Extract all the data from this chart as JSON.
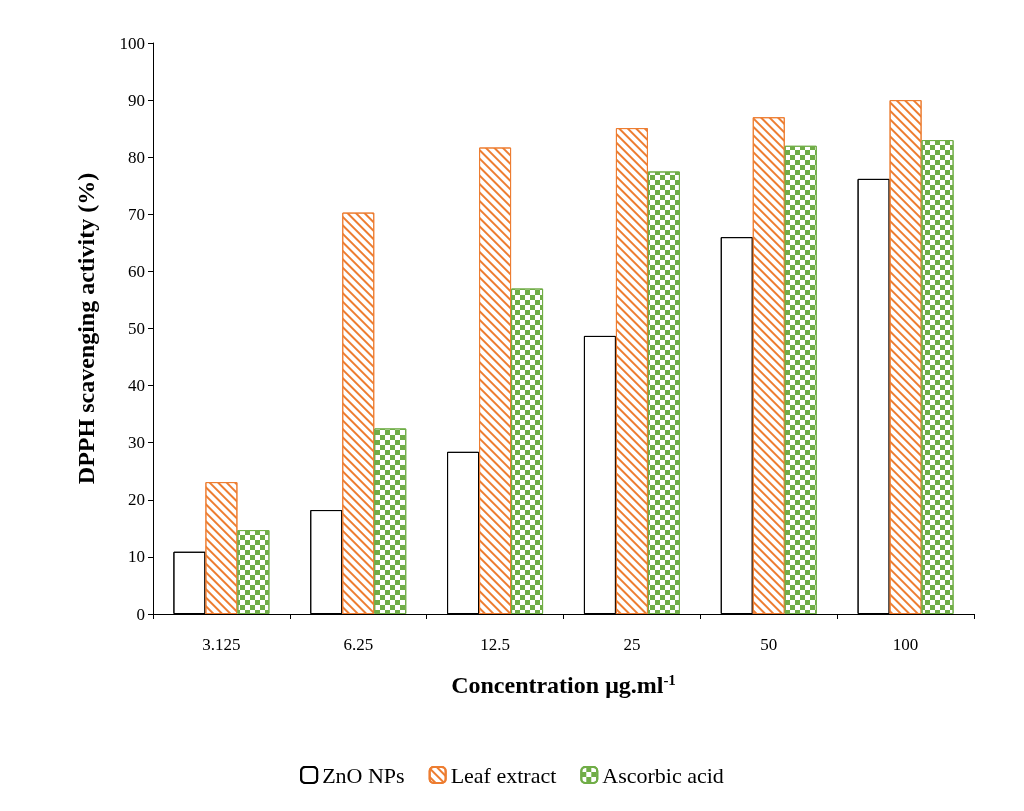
{
  "chart_data": {
    "type": "bar",
    "xlabel": "Concentration μg.ml$^{-1}$",
    "ylabel": "DPPH scavenging activity (%)",
    "categories": [
      "3.125",
      "6.25",
      "12.5",
      "25",
      "50",
      "100"
    ],
    "series": [
      {
        "name": "ZnO NPs",
        "color": "#000000",
        "values": [
          10.9,
          18.2,
          28.4,
          48.7,
          66,
          76.2
        ]
      },
      {
        "name": "Leaf extract",
        "color": "#ed7d31",
        "values": [
          23.1,
          70.3,
          81.7,
          85.1,
          87,
          90
        ]
      },
      {
        "name": "Ascorbic acid",
        "color": "#70ad47",
        "values": [
          14.7,
          32.5,
          57,
          77.5,
          82,
          83
        ]
      }
    ],
    "ylim": [
      0,
      100
    ],
    "yticks": [
      0,
      10,
      20,
      30,
      40,
      50,
      60,
      70,
      80,
      90,
      100
    ],
    "grid": false,
    "legend": "bottom"
  }
}
